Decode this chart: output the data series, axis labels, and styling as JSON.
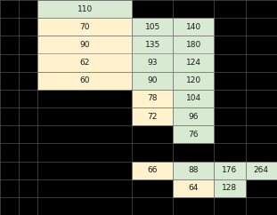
{
  "cells": [
    {
      "row": 1,
      "col": 3,
      "value": "110",
      "bg": "#d9ead3"
    },
    {
      "row": 2,
      "col": 3,
      "value": "70",
      "bg": "#fff2cc"
    },
    {
      "row": 2,
      "col": 4,
      "value": "105",
      "bg": "#d9ead3"
    },
    {
      "row": 2,
      "col": 5,
      "value": "140",
      "bg": "#d9ead3"
    },
    {
      "row": 3,
      "col": 3,
      "value": "90",
      "bg": "#fff2cc"
    },
    {
      "row": 3,
      "col": 4,
      "value": "135",
      "bg": "#d9ead3"
    },
    {
      "row": 3,
      "col": 5,
      "value": "180",
      "bg": "#d9ead3"
    },
    {
      "row": 4,
      "col": 3,
      "value": "62",
      "bg": "#fff2cc"
    },
    {
      "row": 4,
      "col": 4,
      "value": "93",
      "bg": "#d9ead3"
    },
    {
      "row": 4,
      "col": 5,
      "value": "124",
      "bg": "#d9ead3"
    },
    {
      "row": 5,
      "col": 3,
      "value": "60",
      "bg": "#fff2cc"
    },
    {
      "row": 5,
      "col": 4,
      "value": "90",
      "bg": "#d9ead3"
    },
    {
      "row": 5,
      "col": 5,
      "value": "120",
      "bg": "#d9ead3"
    },
    {
      "row": 6,
      "col": 4,
      "value": "78",
      "bg": "#fff2cc"
    },
    {
      "row": 6,
      "col": 5,
      "value": "104",
      "bg": "#d9ead3"
    },
    {
      "row": 7,
      "col": 4,
      "value": "72",
      "bg": "#fff2cc"
    },
    {
      "row": 7,
      "col": 5,
      "value": "96",
      "bg": "#d9ead3"
    },
    {
      "row": 8,
      "col": 5,
      "value": "76",
      "bg": "#d9ead3"
    },
    {
      "row": 10,
      "col": 4,
      "value": "66",
      "bg": "#fff2cc"
    },
    {
      "row": 10,
      "col": 5,
      "value": "88",
      "bg": "#d9ead3"
    },
    {
      "row": 10,
      "col": 6,
      "value": "176",
      "bg": "#d9ead3"
    },
    {
      "row": 10,
      "col": 7,
      "value": "264",
      "bg": "#d9ead3"
    },
    {
      "row": 11,
      "col": 5,
      "value": "64",
      "bg": "#fff2cc"
    },
    {
      "row": 11,
      "col": 6,
      "value": "128",
      "bg": "#d9ead3"
    }
  ],
  "n_rows": 12,
  "n_cols": 7,
  "col_starts": [
    0.0,
    0.068,
    0.136,
    0.477,
    0.625,
    0.773,
    0.886,
    1.0
  ],
  "bg_color": "#000000",
  "text_color": "#1a1a1a",
  "grid_color": "#666666",
  "font_size": 6.5
}
